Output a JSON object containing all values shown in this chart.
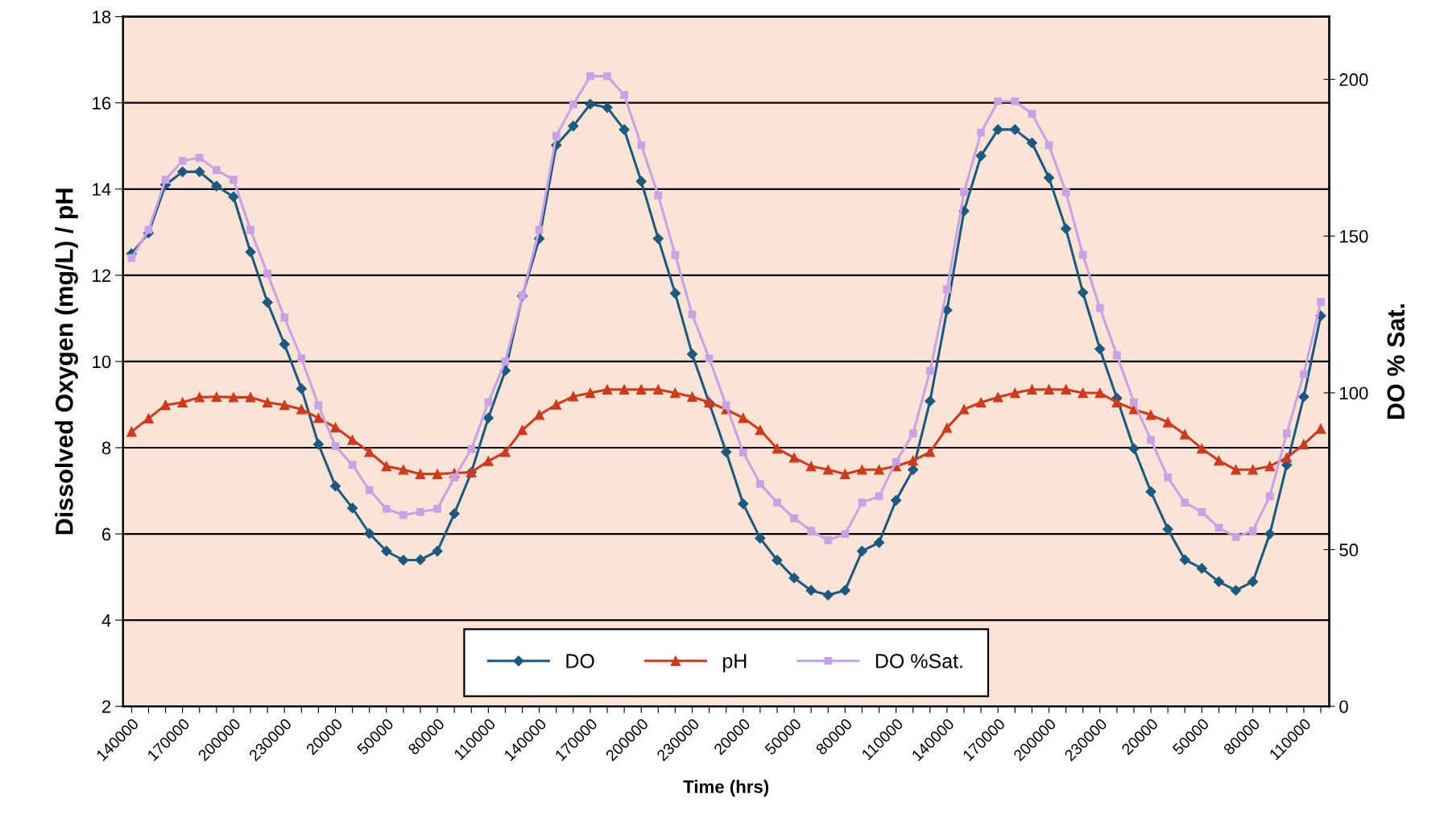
{
  "chart_data": {
    "type": "line",
    "xlabel": "Time (hrs)",
    "ylabel": "Dissolved Oxygen (mg/L) / pH",
    "y2label": "DO % Sat.",
    "categories": [
      "140000",
      null,
      null,
      "170000",
      null,
      null,
      "200000",
      null,
      null,
      "230000",
      null,
      null,
      "20000",
      null,
      null,
      "50000",
      null,
      null,
      "80000",
      null,
      null,
      "110000",
      null,
      null,
      "140000",
      null,
      null,
      "170000",
      null,
      null,
      "200000",
      null,
      null,
      "230000",
      null,
      null,
      "20000",
      null,
      null,
      "50000",
      null,
      null,
      "80000",
      null,
      null,
      "110000",
      null,
      null,
      "140000",
      null,
      null,
      "170000",
      null,
      null,
      "200000",
      null,
      null,
      "230000",
      null,
      null,
      "20000",
      null,
      null,
      "50000",
      null,
      null,
      "80000",
      null,
      null,
      "110000",
      null
    ],
    "ylim": [
      2,
      18
    ],
    "yticks": [
      2,
      4,
      6,
      8,
      10,
      12,
      14,
      16,
      18
    ],
    "y2lim": [
      0,
      220
    ],
    "y2ticks": [
      0,
      50,
      100,
      150,
      200
    ],
    "grid": "y",
    "legend": "bottom",
    "line_style": "solid",
    "series": [
      {
        "name": "DO",
        "color": "#1b5a80",
        "marker": "diamond",
        "values": [
          12.5,
          12.98,
          14.1,
          14.4,
          14.4,
          14.07,
          13.82,
          12.54,
          11.37,
          10.4,
          9.37,
          8.08,
          7.11,
          6.6,
          6.01,
          5.6,
          5.39,
          5.4,
          5.6,
          6.47,
          7.43,
          8.69,
          9.79,
          11.52,
          12.85,
          15.02,
          15.46,
          15.97,
          15.89,
          15.38,
          14.18,
          12.85,
          11.58,
          10.17,
          9.04,
          7.9,
          6.7,
          5.9,
          5.39,
          4.98,
          4.69,
          4.58,
          4.69,
          5.6,
          5.8,
          6.78,
          7.49,
          9.08,
          11.19,
          13.49,
          14.77,
          15.38,
          15.38,
          15.07,
          14.26,
          13.08,
          11.6,
          10.29,
          9.15,
          7.98,
          6.98,
          6.11,
          5.4,
          5.2,
          4.89,
          4.69,
          4.89,
          6.0,
          7.6,
          9.18,
          11.06
        ]
      },
      {
        "name": "pH",
        "color": "#d0391c",
        "marker": "triangle",
        "values": [
          8.37,
          8.68,
          8.99,
          9.05,
          9.17,
          9.18,
          9.17,
          9.17,
          9.05,
          8.99,
          8.89,
          8.69,
          8.47,
          8.18,
          7.9,
          7.57,
          7.49,
          7.39,
          7.39,
          7.41,
          7.43,
          7.69,
          7.9,
          8.41,
          8.76,
          9.0,
          9.19,
          9.27,
          9.35,
          9.35,
          9.35,
          9.35,
          9.27,
          9.18,
          9.05,
          8.89,
          8.69,
          8.41,
          7.98,
          7.77,
          7.57,
          7.49,
          7.39,
          7.49,
          7.49,
          7.57,
          7.7,
          7.9,
          8.46,
          8.89,
          9.05,
          9.17,
          9.27,
          9.35,
          9.35,
          9.35,
          9.27,
          9.27,
          9.05,
          8.89,
          8.76,
          8.59,
          8.31,
          7.98,
          7.7,
          7.49,
          7.49,
          7.57,
          7.77,
          8.08,
          8.44
        ]
      },
      {
        "name": "DO %Sat.",
        "color": "#c8a2e6",
        "marker": "square",
        "axis": "y2",
        "values": [
          143,
          152,
          168,
          174,
          175,
          171,
          168,
          152,
          138,
          124,
          111,
          96,
          83,
          77,
          69,
          63,
          61,
          62,
          63,
          73,
          82,
          97,
          110,
          131,
          152,
          182,
          192,
          201,
          201,
          195,
          179,
          163,
          144,
          125,
          111,
          96,
          81,
          71,
          65,
          60,
          56,
          53,
          55,
          65,
          67,
          78,
          87,
          107,
          133,
          164,
          183,
          193,
          193,
          189,
          179,
          164,
          144,
          127,
          112,
          97,
          85,
          73,
          65,
          62,
          57,
          54,
          56,
          67,
          87,
          106,
          129
        ]
      }
    ]
  }
}
